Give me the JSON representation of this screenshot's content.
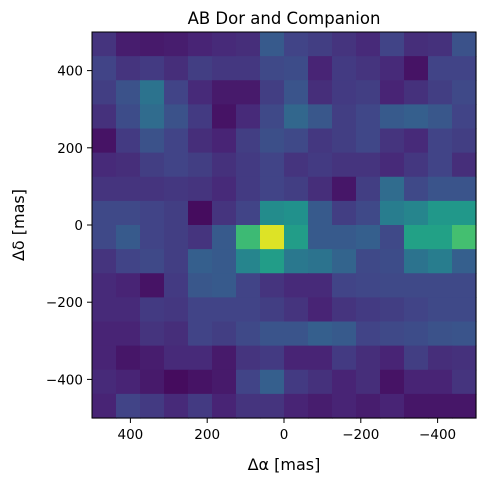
{
  "chart_data": {
    "type": "heatmap",
    "title": "AB Dor and Companion",
    "xlabel": "Δα [mas]",
    "ylabel": "Δδ [mas]",
    "xlim": [
      500,
      -500
    ],
    "ylim": [
      -500,
      500
    ],
    "x_ticks": [
      400,
      200,
      0,
      -200,
      -400
    ],
    "x_tick_labels": [
      "400",
      "200",
      "0",
      "−200",
      "−400"
    ],
    "y_ticks": [
      400,
      200,
      0,
      -200,
      -400
    ],
    "y_tick_labels": [
      "400",
      "200",
      "0",
      "−200",
      "−400"
    ],
    "grid": false,
    "colormap": "viridis",
    "rows": 16,
    "cols": 16,
    "cell_size_mas": 62.5,
    "row_order": "top-to-bottom (Δδ from +500 down to -500)",
    "col_order": "left-to-right (Δα from +500 down to -500)",
    "values": [
      [
        0.15,
        0.08,
        0.07,
        0.08,
        0.1,
        0.12,
        0.13,
        0.28,
        0.2,
        0.18,
        0.15,
        0.12,
        0.2,
        0.13,
        0.14,
        0.25
      ],
      [
        0.2,
        0.15,
        0.17,
        0.13,
        0.18,
        0.16,
        0.16,
        0.22,
        0.23,
        0.1,
        0.17,
        0.15,
        0.12,
        0.05,
        0.2,
        0.2
      ],
      [
        0.18,
        0.25,
        0.38,
        0.2,
        0.12,
        0.07,
        0.07,
        0.18,
        0.26,
        0.13,
        0.17,
        0.18,
        0.1,
        0.14,
        0.18,
        0.22
      ],
      [
        0.14,
        0.23,
        0.35,
        0.25,
        0.17,
        0.05,
        0.12,
        0.22,
        0.33,
        0.27,
        0.18,
        0.21,
        0.28,
        0.3,
        0.27,
        0.2
      ],
      [
        0.05,
        0.17,
        0.25,
        0.2,
        0.13,
        0.1,
        0.18,
        0.24,
        0.22,
        0.16,
        0.18,
        0.21,
        0.15,
        0.12,
        0.2,
        0.18
      ],
      [
        0.12,
        0.13,
        0.18,
        0.2,
        0.18,
        0.14,
        0.17,
        0.2,
        0.15,
        0.17,
        0.15,
        0.15,
        0.12,
        0.16,
        0.2,
        0.13
      ],
      [
        0.15,
        0.15,
        0.15,
        0.16,
        0.15,
        0.12,
        0.17,
        0.2,
        0.18,
        0.13,
        0.06,
        0.18,
        0.35,
        0.22,
        0.26,
        0.26
      ],
      [
        0.22,
        0.22,
        0.2,
        0.18,
        0.03,
        0.15,
        0.2,
        0.48,
        0.5,
        0.28,
        0.18,
        0.22,
        0.42,
        0.45,
        0.53,
        0.53
      ],
      [
        0.22,
        0.28,
        0.2,
        0.18,
        0.15,
        0.28,
        0.68,
        0.95,
        0.55,
        0.28,
        0.28,
        0.3,
        0.22,
        0.57,
        0.57,
        0.7
      ],
      [
        0.15,
        0.2,
        0.22,
        0.18,
        0.3,
        0.28,
        0.45,
        0.55,
        0.4,
        0.38,
        0.32,
        0.22,
        0.23,
        0.38,
        0.42,
        0.3
      ],
      [
        0.12,
        0.1,
        0.05,
        0.17,
        0.27,
        0.28,
        0.2,
        0.15,
        0.12,
        0.12,
        0.2,
        0.21,
        0.22,
        0.22,
        0.22,
        0.22
      ],
      [
        0.12,
        0.12,
        0.17,
        0.16,
        0.2,
        0.2,
        0.2,
        0.18,
        0.15,
        0.1,
        0.15,
        0.17,
        0.18,
        0.2,
        0.22,
        0.22
      ],
      [
        0.1,
        0.1,
        0.15,
        0.13,
        0.2,
        0.18,
        0.22,
        0.26,
        0.26,
        0.3,
        0.28,
        0.2,
        0.22,
        0.23,
        0.25,
        0.26
      ],
      [
        0.1,
        0.06,
        0.08,
        0.12,
        0.12,
        0.07,
        0.15,
        0.17,
        0.1,
        0.1,
        0.17,
        0.13,
        0.1,
        0.18,
        0.13,
        0.14
      ],
      [
        0.12,
        0.1,
        0.07,
        0.03,
        0.05,
        0.07,
        0.2,
        0.3,
        0.17,
        0.14,
        0.1,
        0.13,
        0.05,
        0.1,
        0.1,
        0.15
      ],
      [
        0.1,
        0.2,
        0.17,
        0.12,
        0.17,
        0.1,
        0.15,
        0.15,
        0.1,
        0.08,
        0.1,
        0.08,
        0.1,
        0.06,
        0.06,
        0.06
      ]
    ]
  }
}
